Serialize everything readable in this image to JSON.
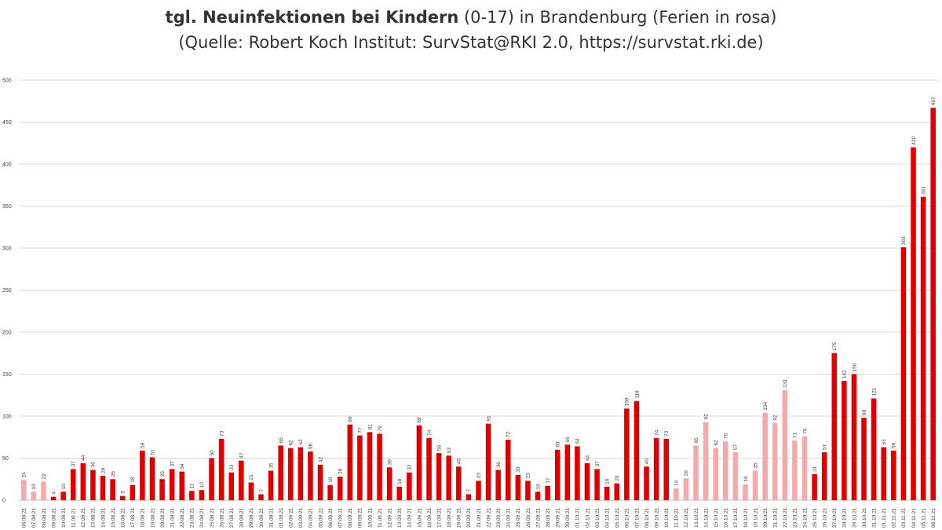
{
  "title": {
    "bold": "tgl. Neuinfektionen bei Kindern",
    "rest": " (0-17) in Brandenburg (Ferien in rosa)",
    "subtitle": "(Quelle: Robert Koch Institut: SurvStat@RKI 2.0, https://survstat.rki.de)"
  },
  "colors": {
    "school": "#e00000",
    "holiday": "#f4aaaa",
    "grid": "#d9d9d9",
    "text": "#404040"
  },
  "chart_data": {
    "type": "bar",
    "title": "tgl. Neuinfektionen bei Kindern (0-17) in Brandenburg (Ferien in rosa)",
    "subtitle": "(Quelle: Robert Koch Institut: SurvStat@RKI 2.0, https://survstat.rki.de)",
    "ylim": [
      0,
      500
    ],
    "yticks": [
      0,
      50,
      100,
      150,
      200,
      250,
      300,
      350,
      400,
      450,
      500
    ],
    "grid": true,
    "categories": [
      "06.08.21",
      "07.08.21",
      "08.08.21",
      "09.08.21",
      "10.08.21",
      "11.08.21",
      "12.08.21",
      "13.08.21",
      "14.08.21",
      "15.08.21",
      "16.08.21",
      "17.08.21",
      "18.08.21",
      "19.08.21",
      "20.08.21",
      "21.08.21",
      "22.08.21",
      "23.08.21",
      "24.08.21",
      "25.08.21",
      "26.08.21",
      "27.08.21",
      "28.08.21",
      "29.08.21",
      "30.08.21",
      "31.08.21",
      "01.09.21",
      "02.09.21",
      "03.09.21",
      "04.09.21",
      "05.09.21",
      "06.09.21",
      "07.09.21",
      "08.09.21",
      "09.09.21",
      "10.09.21",
      "11.09.21",
      "12.09.21",
      "13.09.21",
      "14.09.21",
      "15.09.21",
      "16.09.21",
      "17.09.21",
      "18.09.21",
      "19.09.21",
      "20.09.21",
      "21.09.21",
      "22.09.21",
      "23.09.21",
      "24.09.21",
      "25.09.21",
      "26.09.21",
      "27.09.21",
      "28.09.21",
      "29.09.21",
      "30.09.21",
      "01.10.21",
      "02.10.21",
      "03.10.21",
      "04.10.21",
      "05.10.21",
      "06.10.21",
      "07.10.21",
      "08.10.21",
      "09.10.21",
      "10.10.21",
      "11.10.21",
      "12.10.21",
      "13.10.21",
      "14.10.21",
      "15.10.21",
      "16.10.21",
      "17.10.21",
      "18.10.21",
      "19.10.21",
      "20.10.21",
      "21.10.21",
      "22.10.21",
      "23.10.21",
      "24.10.21",
      "25.10.21",
      "26.10.21",
      "27.10.21",
      "28.10.21",
      "29.10.21",
      "30.10.21",
      "31.10.21",
      "01.11.21",
      "02.11.21",
      "03.11.21",
      "04.11.21",
      "05.11.21",
      "06.11.21"
    ],
    "values": [
      24,
      10,
      22,
      4,
      10,
      37,
      44,
      36,
      29,
      25,
      5,
      18,
      59,
      51,
      25,
      37,
      34,
      11,
      12,
      50,
      73,
      33,
      47,
      21,
      7,
      35,
      65,
      62,
      63,
      58,
      42,
      18,
      28,
      90,
      77,
      81,
      79,
      39,
      16,
      33,
      89,
      74,
      56,
      53,
      40,
      7,
      23,
      91,
      36,
      72,
      30,
      23,
      10,
      17,
      60,
      66,
      64,
      44,
      37,
      16,
      20,
      109,
      118,
      40,
      74,
      73,
      14,
      26,
      65,
      93,
      62,
      70,
      57,
      19,
      35,
      104,
      92,
      131,
      71,
      76,
      31,
      57,
      175,
      142,
      150,
      98,
      121,
      63,
      59,
      301,
      420,
      361,
      467
    ],
    "holiday": [
      true,
      true,
      true,
      false,
      false,
      false,
      false,
      false,
      false,
      false,
      false,
      false,
      false,
      false,
      false,
      false,
      false,
      false,
      false,
      false,
      false,
      false,
      false,
      false,
      false,
      false,
      false,
      false,
      false,
      false,
      false,
      false,
      false,
      false,
      false,
      false,
      false,
      false,
      false,
      false,
      false,
      false,
      false,
      false,
      false,
      false,
      false,
      false,
      false,
      false,
      false,
      false,
      false,
      false,
      false,
      false,
      false,
      false,
      false,
      false,
      false,
      false,
      false,
      false,
      false,
      false,
      true,
      true,
      true,
      true,
      true,
      true,
      true,
      true,
      true,
      true,
      true,
      true,
      true,
      true,
      false,
      false,
      false,
      false,
      false,
      false,
      false,
      false,
      false,
      false,
      false,
      false,
      false
    ]
  }
}
